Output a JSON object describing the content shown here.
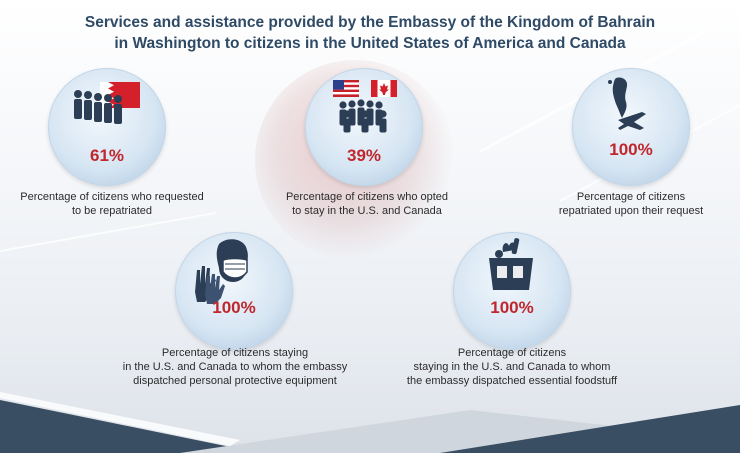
{
  "title": {
    "line1": "Services and assistance provided by the Embassy of the Kingdom of Bahrain",
    "line2": "in Washington to citizens  in the United States of America and Canada"
  },
  "stats": [
    {
      "percent": "61%",
      "caption_line1": "Percentage of citizens who requested",
      "caption_line2": "to be repatriated",
      "icon": "people-bahrain-flag-icon"
    },
    {
      "percent": "39%",
      "caption_line1": "Percentage of citizens who opted",
      "caption_line2": "to stay in the U.S. and Canada",
      "icon": "people-us-canada-flags-icon"
    },
    {
      "percent": "100%",
      "caption_line1": "Percentage of citizens",
      "caption_line2": "repatriated upon their request",
      "icon": "bahrain-map-airplane-icon"
    },
    {
      "percent": "100%",
      "caption_line1": "Percentage of citizens staying",
      "caption_line2": "in the U.S. and Canada to whom the embassy",
      "caption_line3": "dispatched personal protective equipment",
      "icon": "face-mask-gloves-icon"
    },
    {
      "percent": "100%",
      "caption_line1": "Percentage of citizens",
      "caption_line2": "staying in the U.S. and Canada to whom",
      "caption_line3": "the embassy dispatched essential foodstuff",
      "icon": "grocery-bag-icon"
    }
  ],
  "colors": {
    "title": "#2f4a66",
    "percent": "#c0272d",
    "band_dark": "#3a4e63",
    "band_light": "#cfd6de",
    "icon": "#2c3e55"
  }
}
